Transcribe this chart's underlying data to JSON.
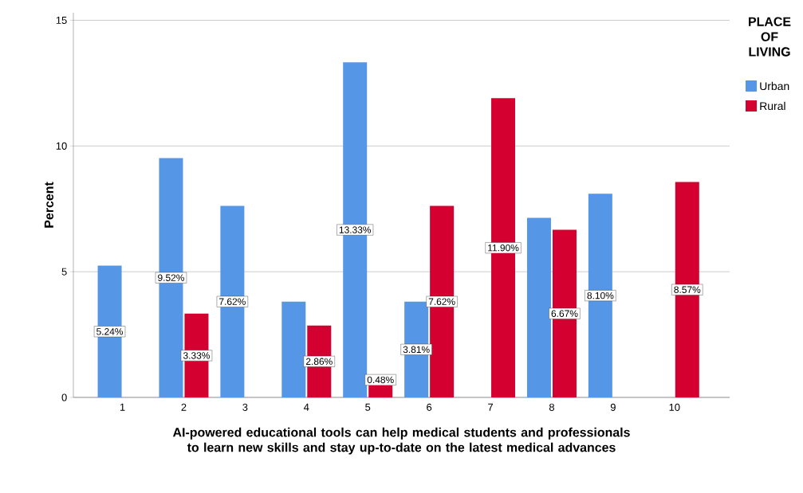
{
  "chart_data": {
    "type": "bar",
    "xlabel": "AI-powered educational tools can help medical students and professionals to learn new skills and stay up-to-date on the latest medical advances",
    "ylabel": "Percent",
    "categories": [
      "1",
      "2",
      "3",
      "4",
      "5",
      "6",
      "7",
      "8",
      "9",
      "10"
    ],
    "series": [
      {
        "name": "Urban",
        "color": "#5596e6",
        "values": [
          5.24,
          9.52,
          7.62,
          3.81,
          13.33,
          3.81,
          null,
          7.14,
          8.1,
          null
        ],
        "value_labels": [
          "5.24%",
          "9.52%",
          "7.62%",
          null,
          "13.33%",
          "3.81%",
          null,
          null,
          "8.10%",
          null
        ]
      },
      {
        "name": "Rural",
        "color": "#d4002f",
        "values": [
          null,
          3.33,
          null,
          2.86,
          0.48,
          7.62,
          11.9,
          6.67,
          null,
          8.57
        ],
        "value_labels": [
          null,
          "3.33%",
          null,
          "2.86%",
          "0.48%",
          "7.62%",
          "11.90%",
          "6.67%",
          null,
          "8.57%"
        ]
      }
    ],
    "ylim": [
      0,
      15.3
    ],
    "yticks": [
      0,
      5,
      10,
      15
    ],
    "grid": "y",
    "legend": "right",
    "legend_title": "PLACE OF LIVING"
  }
}
